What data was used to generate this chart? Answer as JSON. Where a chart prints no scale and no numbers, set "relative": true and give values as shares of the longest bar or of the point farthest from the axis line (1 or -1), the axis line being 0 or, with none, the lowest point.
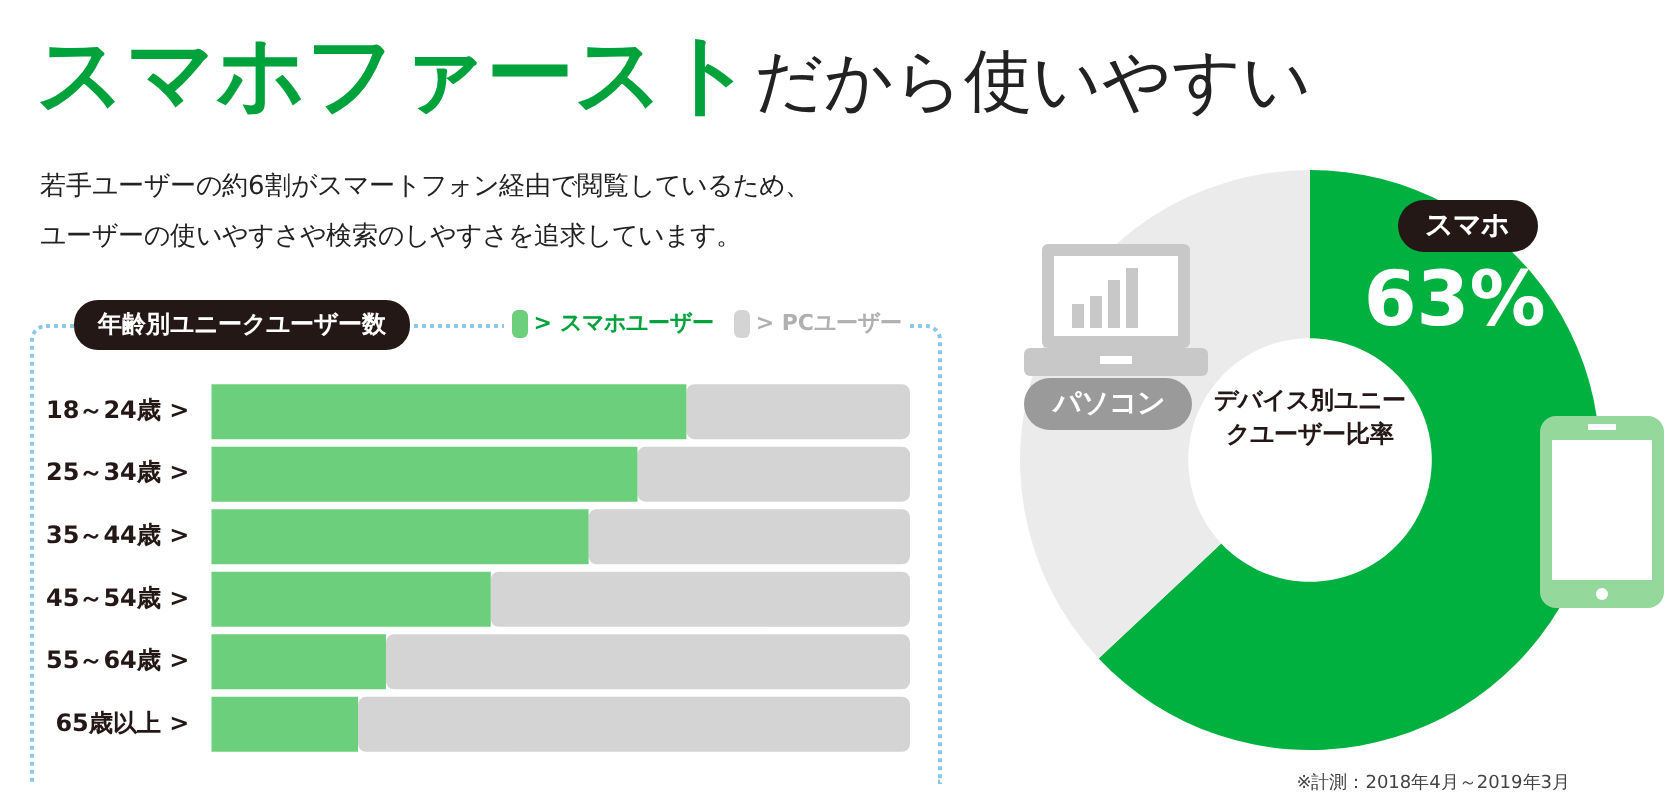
{
  "chart_data": [
    {
      "type": "other",
      "title": "スマホファースト",
      "subtitle": "だから使いやすい",
      "annotations": [
        "若手ユーザーの約6割がスマートフォン経由で閲覧しているため、",
        "ユーザーの使いやすさや検索のしやすさを追求しています。"
      ]
    },
    {
      "type": "bar",
      "title": "年齢別ユニークユーザー数",
      "orientation": "horizontal",
      "stacked": true,
      "relative": true,
      "legend": "top right",
      "categories": [
        "18～24歳 >",
        "25～34歳 >",
        "35～44歳 >",
        "45～54歳 >",
        "55～64歳 >",
        "65歳以上 >"
      ],
      "series": [
        {
          "name": "> スマホユーザー",
          "color": "#6ccf7c",
          "values": [
            0.68,
            0.61,
            0.54,
            0.4,
            0.25,
            0.21
          ]
        },
        {
          "name": "> PCユーザー",
          "color": "#d4d4d4",
          "values": [
            0.32,
            0.39,
            0.46,
            0.6,
            0.75,
            0.79
          ]
        }
      ]
    },
    {
      "type": "donut",
      "title": "デバイス別ユニークユーザー比率",
      "categories": [
        "スマホ",
        "パソコン"
      ],
      "values": [
        63,
        37
      ],
      "colors": [
        "#00b140",
        "#ebebeb"
      ],
      "value_labels": [
        "63%",
        null
      ],
      "annotations": [
        "※計測：2018年4月～2019年3月"
      ]
    }
  ]
}
